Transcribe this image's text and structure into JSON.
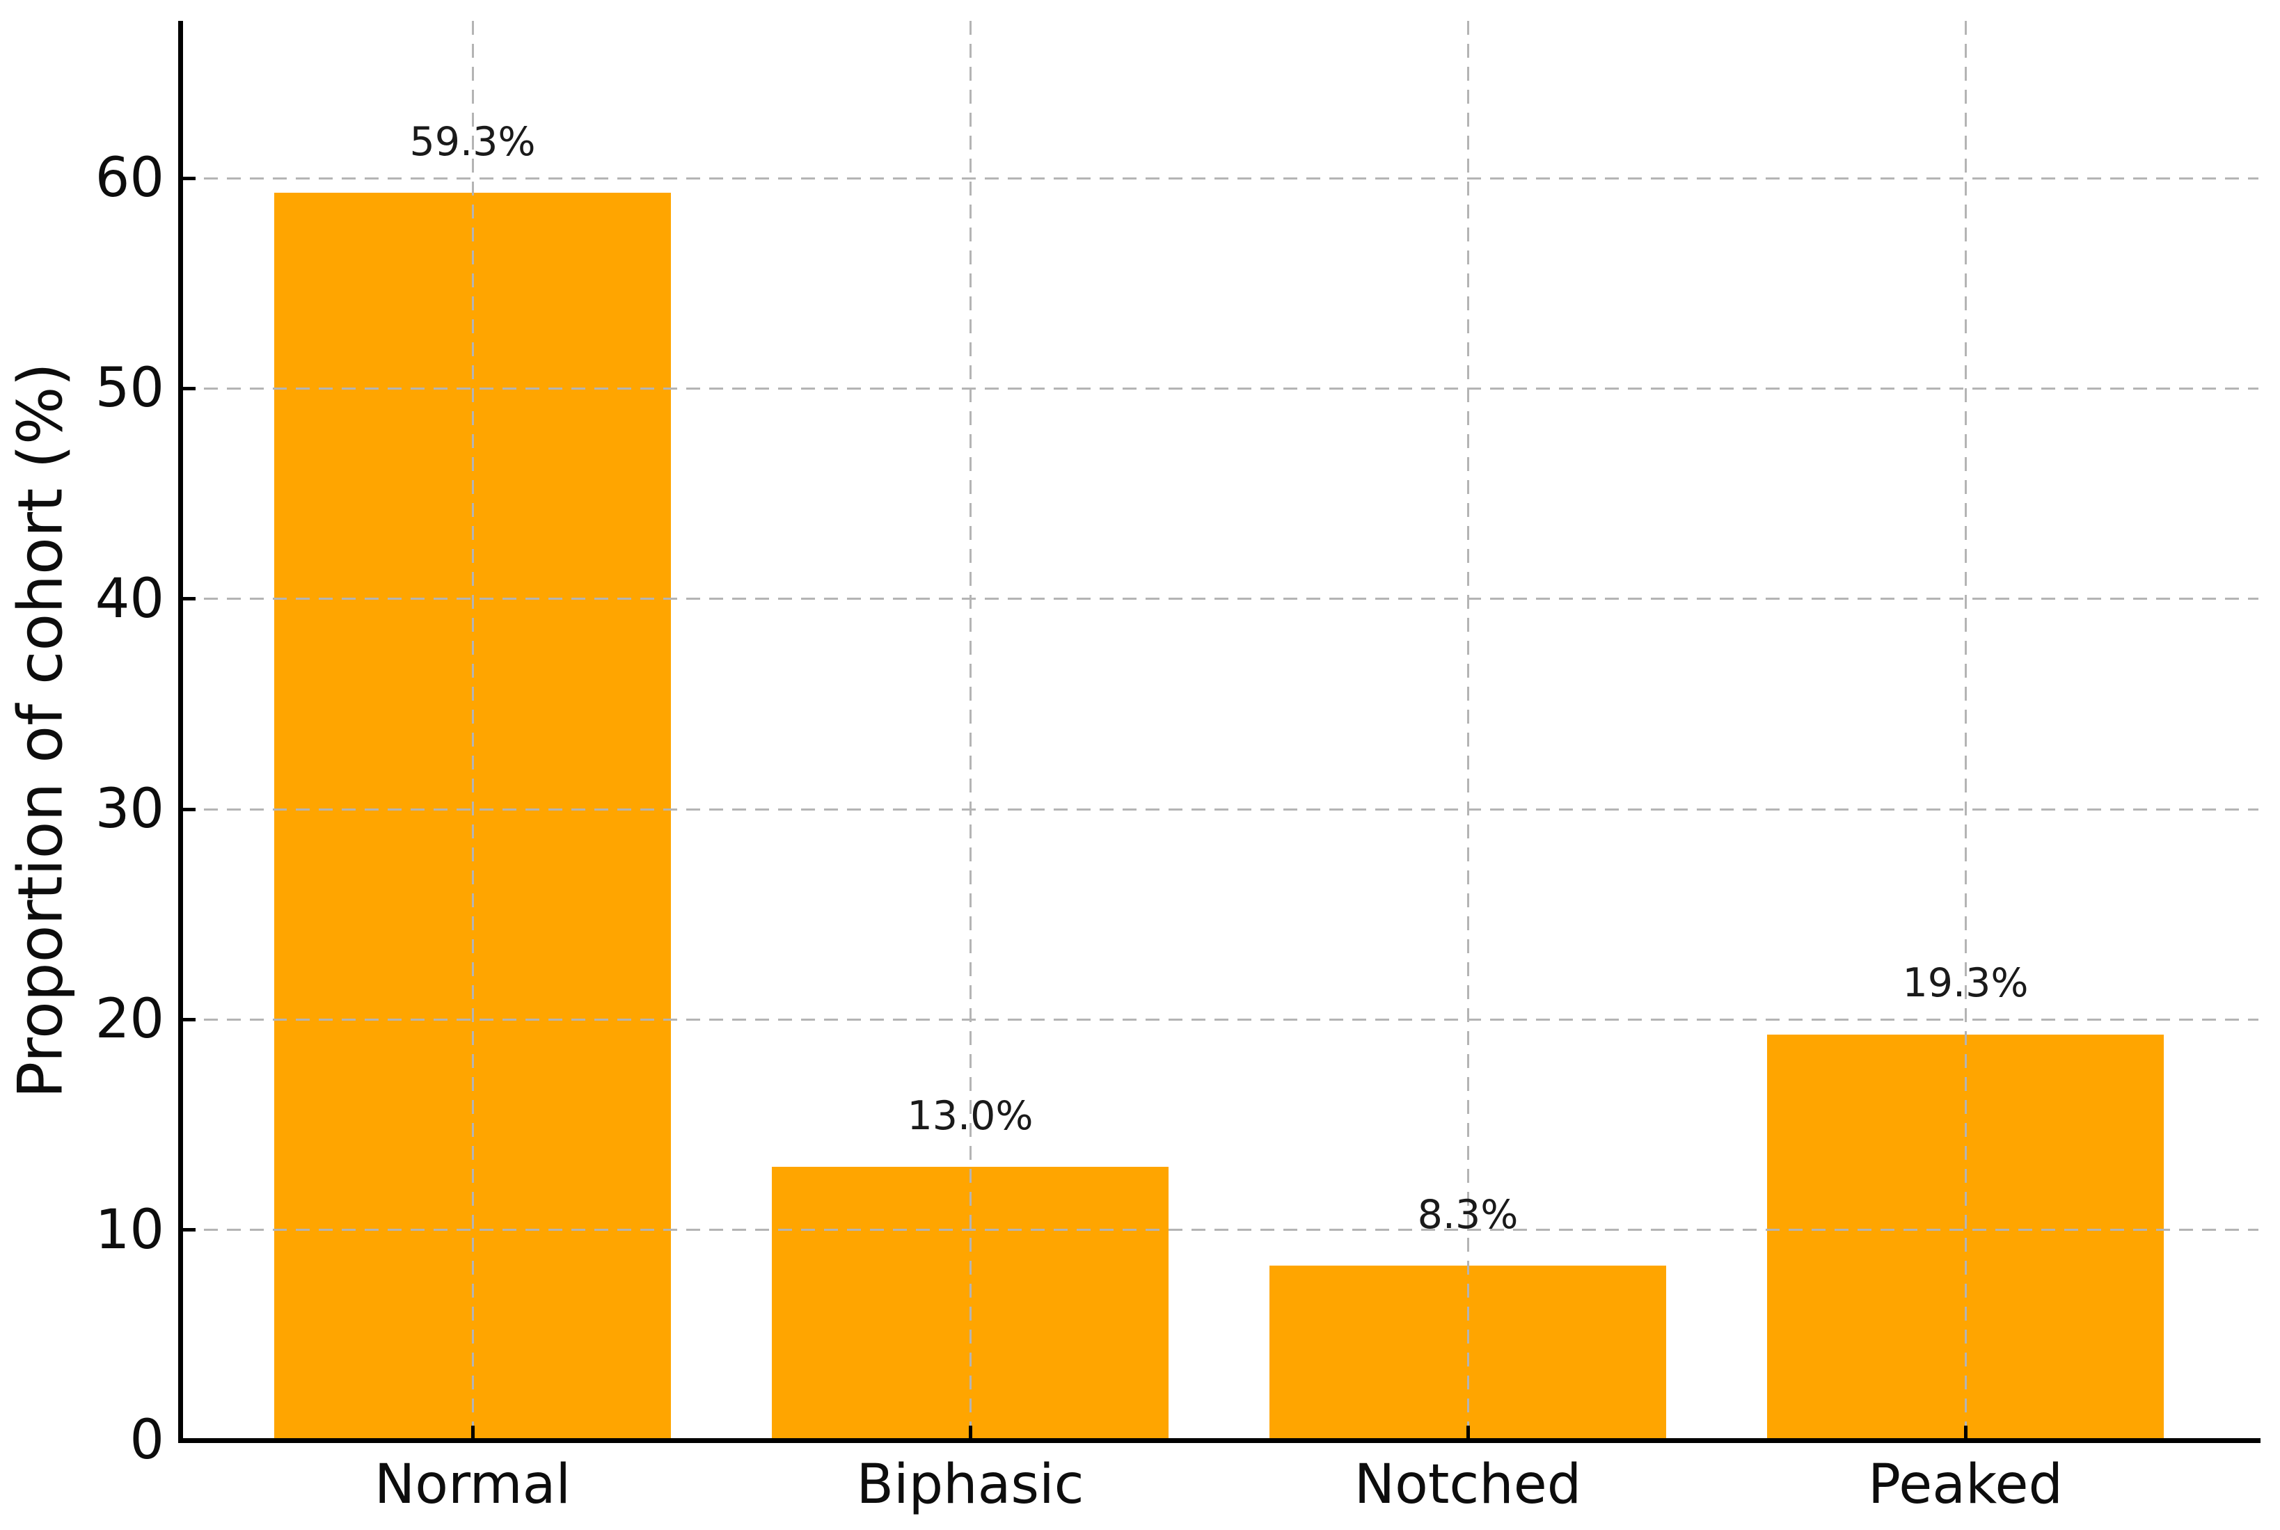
{
  "figure": {
    "background": "#ffffff"
  },
  "chart_data": {
    "type": "bar",
    "categories": [
      "Normal",
      "Biphasic",
      "Notched",
      "Peaked"
    ],
    "values": [
      59.3,
      13.0,
      8.3,
      19.3
    ],
    "bar_labels": [
      "59.3%",
      "13.0%",
      "8.3%",
      "19.3%"
    ],
    "title": "",
    "xlabel": "",
    "ylabel": "Proportion of cohort (%)",
    "ylim": [
      0,
      67.5
    ],
    "yticks": [
      0,
      10,
      20,
      30,
      40,
      50,
      60
    ],
    "ytick_labels": [
      "0",
      "10",
      "20",
      "30",
      "40",
      "50",
      "60"
    ],
    "grid": "dashed, horizontal and vertical, drawn above bars",
    "legend_position": "none",
    "bar_color": "#FFA500",
    "grid_color": "#b4b4b4",
    "axis_color": "#000000",
    "text_color": "#0d0d0d"
  }
}
